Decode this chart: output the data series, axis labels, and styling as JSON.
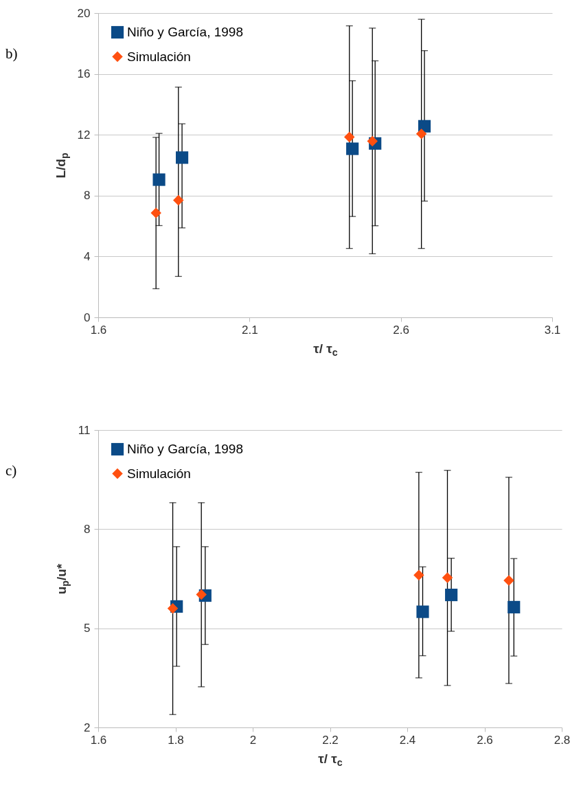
{
  "chart_data": [
    {
      "type": "scatter",
      "annotations": [
        "b)"
      ],
      "xlabel": "τ/ τ$_{c}$",
      "ylabel": "L/d$_{p}$",
      "xlim": [
        1.6,
        3.1
      ],
      "xticks": [
        1.6,
        2.1,
        2.6,
        3.1
      ],
      "ylim": [
        0,
        20
      ],
      "yticks": [
        0,
        4,
        8,
        12,
        16,
        20
      ],
      "grid": "y",
      "legend": "top left",
      "series": [
        {
          "name": "Niño y García, 1998",
          "color": "#0b4a87",
          "marker": "square",
          "x": [
            1.801,
            1.877,
            2.44,
            2.515,
            2.678
          ],
          "values": [
            9.05,
            10.5,
            11.08,
            11.43,
            12.56
          ],
          "errors": [
            [
              6.03,
              12.09
            ],
            [
              5.88,
              12.72
            ],
            [
              6.63,
              15.55
            ],
            [
              6.02,
              16.86
            ],
            [
              7.64,
              17.53
            ]
          ]
        },
        {
          "name": "Simulación",
          "color": "#ff5010",
          "marker": "diamond",
          "x": [
            1.791,
            1.865,
            2.43,
            2.506,
            2.668
          ],
          "values": [
            6.86,
            7.7,
            11.85,
            11.58,
            12.06
          ],
          "errors": [
            [
              1.88,
              11.83
            ],
            [
              2.69,
              15.13
            ],
            [
              4.53,
              19.16
            ],
            [
              4.18,
              19.01
            ],
            [
              4.53,
              19.59
            ]
          ]
        }
      ]
    },
    {
      "type": "scatter",
      "annotations": [
        "c)"
      ],
      "xlabel": "τ/ τ$_{c}$",
      "ylabel": "u$_{p}$/u*",
      "xlim": [
        1.6,
        2.8
      ],
      "xticks": [
        1.6,
        1.8,
        2,
        2.2,
        2.4,
        2.6,
        2.8
      ],
      "ylim": [
        2,
        11
      ],
      "yticks": [
        2,
        5,
        8,
        11
      ],
      "grid": "y",
      "legend": "top left",
      "series": [
        {
          "name": "Niño y García, 1998",
          "color": "#0b4a87",
          "marker": "square",
          "x": [
            1.803,
            1.877,
            2.44,
            2.514,
            2.676
          ],
          "values": [
            5.66,
            5.99,
            5.5,
            6.01,
            5.64
          ],
          "errors": [
            [
              3.85,
              7.47
            ],
            [
              4.51,
              7.47
            ],
            [
              4.17,
              6.86
            ],
            [
              4.91,
              7.12
            ],
            [
              4.16,
              7.11
            ]
          ]
        },
        {
          "name": "Simulación",
          "color": "#ff5010",
          "marker": "diamond",
          "x": [
            1.793,
            1.867,
            2.43,
            2.504,
            2.663
          ],
          "values": [
            5.6,
            6.02,
            6.61,
            6.53,
            6.45
          ],
          "errors": [
            [
              2.39,
              8.8
            ],
            [
              3.23,
              8.8
            ],
            [
              3.5,
              9.72
            ],
            [
              3.27,
              9.78
            ],
            [
              3.33,
              9.57
            ]
          ]
        }
      ]
    }
  ]
}
